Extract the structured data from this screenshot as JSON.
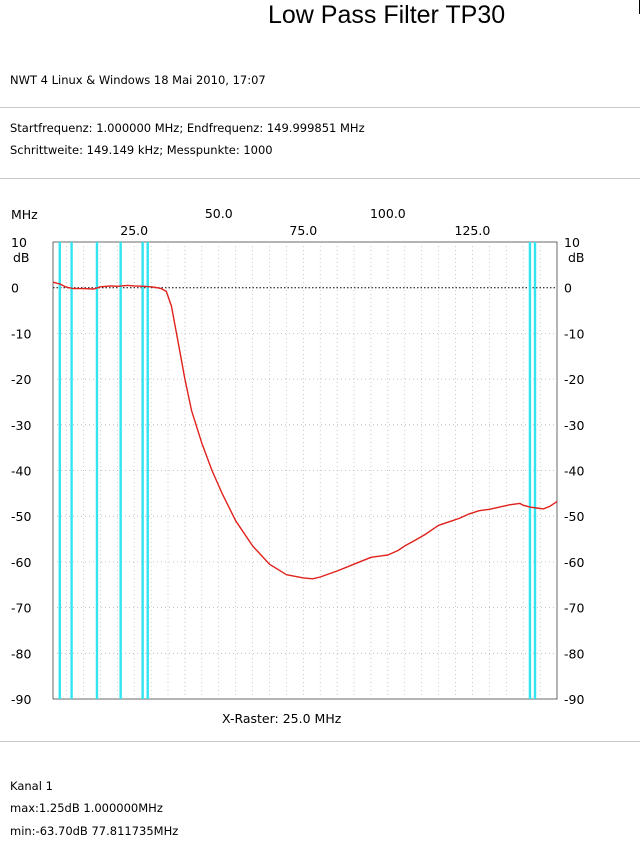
{
  "title": "Low Pass Filter TP30",
  "header": {
    "app_line": "NWT 4 Linux & Windows  18 Mai 2010, 17:07",
    "start_end": "Startfrequenz: 1.000000 MHz; Endfrequenz: 149.999851 MHz",
    "step_points": "Schrittweite: 149.149 kHz; Messpunkte: 1000"
  },
  "footer": {
    "channel": "Kanal 1",
    "max": "max:1.25dB 1.000000MHz",
    "min": "min:-63.70dB 77.811735MHz"
  },
  "colors": {
    "trace": "#e0201b",
    "markers": "#30e4f2",
    "grid": "#b4b4b4",
    "zero_line": "#000000"
  },
  "chart_data": {
    "type": "line",
    "x_unit_label": "MHz",
    "y_unit_label": "dB",
    "xlim": [
      1.0,
      149.999851
    ],
    "ylim": [
      -90,
      10
    ],
    "x_ticks_top": [
      "25.0",
      "75.0",
      "125.0"
    ],
    "x_ticks_top_row2": [
      "50.0",
      "100.0"
    ],
    "x_tick_values_top": [
      25,
      75,
      125
    ],
    "x_tick_values_top_row2": [
      50,
      100
    ],
    "y_ticks": [
      "10",
      "0",
      "-10",
      "-20",
      "-30",
      "-40",
      "-50",
      "-60",
      "-70",
      "-80",
      "-90"
    ],
    "y_tick_values": [
      10,
      0,
      -10,
      -20,
      -30,
      -40,
      -50,
      -60,
      -70,
      -80,
      -90
    ],
    "x_raster_label": "X-Raster: 25.0 MHz",
    "grid": true,
    "marker_lines_mhz": [
      3,
      6.5,
      14,
      21,
      27.5,
      29,
      142,
      143.5
    ],
    "series": [
      {
        "x": [
          1,
          3,
          5,
          7,
          10,
          13,
          15,
          18,
          20,
          23,
          25,
          28,
          31,
          33,
          34.5,
          36,
          37,
          38,
          40,
          42,
          45,
          48,
          51,
          55,
          60,
          65,
          70,
          75,
          77.8,
          80,
          85,
          90,
          95,
          100,
          103,
          105,
          108,
          111,
          113,
          115,
          117,
          119,
          121,
          124,
          127,
          130,
          133,
          136,
          139,
          140,
          142,
          144,
          146,
          148,
          150
        ],
        "y": [
          1.2,
          0.8,
          0.1,
          -0.2,
          -0.2,
          -0.3,
          0.2,
          0.4,
          0.3,
          0.5,
          0.4,
          0.3,
          0.1,
          -0.2,
          -0.8,
          -4,
          -8,
          -12,
          -20,
          -27,
          -34,
          -40,
          -45,
          -51,
          -56.5,
          -60.5,
          -62.8,
          -63.5,
          -63.7,
          -63.3,
          -62,
          -60.5,
          -59,
          -58.5,
          -57.5,
          -56.5,
          -55.3,
          -54,
          -53,
          -52,
          -51.5,
          -51,
          -50.5,
          -49.5,
          -48.8,
          -48.5,
          -48,
          -47.5,
          -47.2,
          -47.6,
          -48,
          -48.2,
          -48.4,
          -47.8,
          -46.8
        ]
      }
    ]
  }
}
